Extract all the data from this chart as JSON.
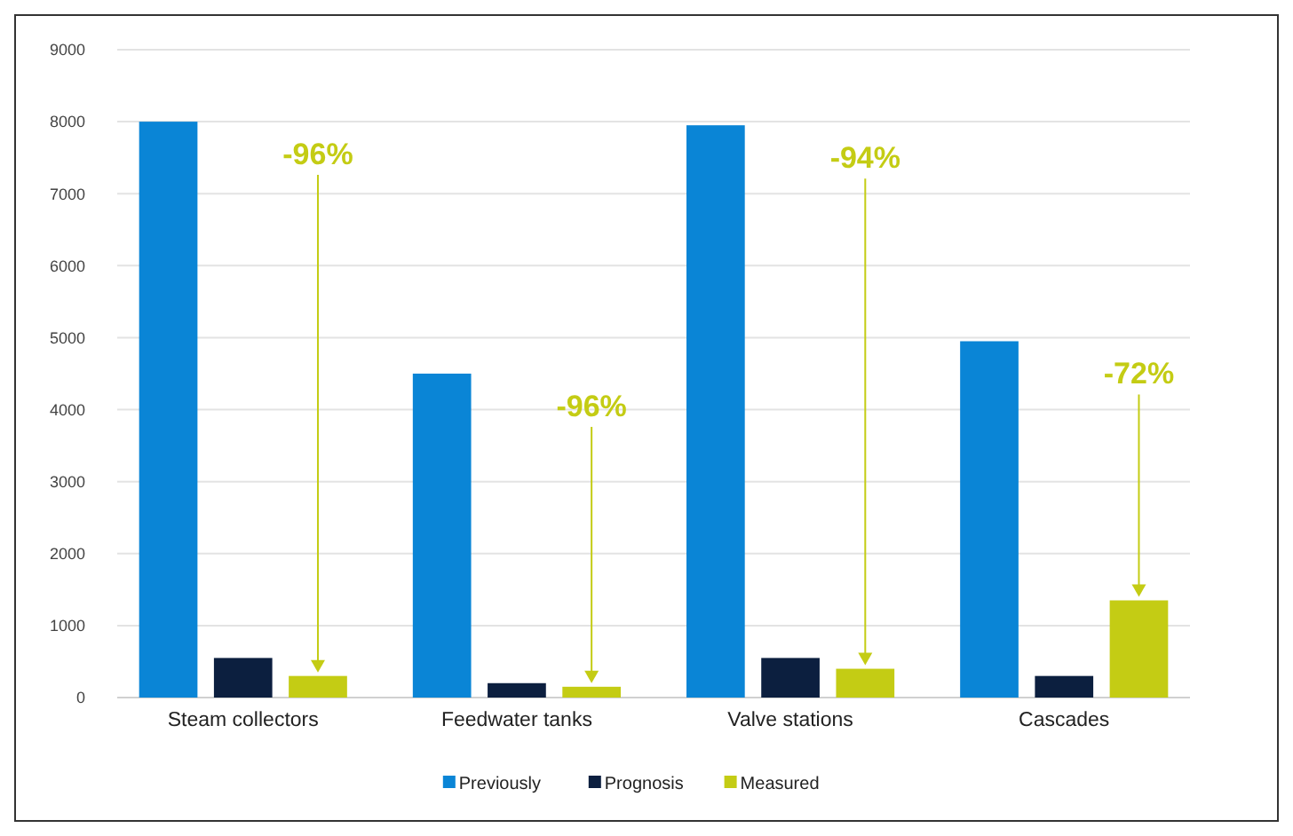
{
  "chart_data": {
    "type": "bar",
    "categories": [
      "Steam collectors",
      "Feedwater tanks",
      "Valve stations",
      "Cascades"
    ],
    "series": [
      {
        "name": "Previously",
        "color": "#0a85d6",
        "values": [
          8000,
          4500,
          7950,
          4950
        ]
      },
      {
        "name": "Prognosis",
        "color": "#0c1f3f",
        "values": [
          550,
          200,
          550,
          300
        ]
      },
      {
        "name": "Measured",
        "color": "#c4cc14",
        "values": [
          300,
          150,
          400,
          1350
        ]
      }
    ],
    "ylim": [
      0,
      9000
    ],
    "yticks": [
      0,
      1000,
      2000,
      3000,
      4000,
      5000,
      6000,
      7000,
      8000,
      9000
    ],
    "grid": "y",
    "legend": "bottom",
    "annotations": [
      "-96%",
      "-96%",
      "-94%",
      "-72%"
    ]
  }
}
